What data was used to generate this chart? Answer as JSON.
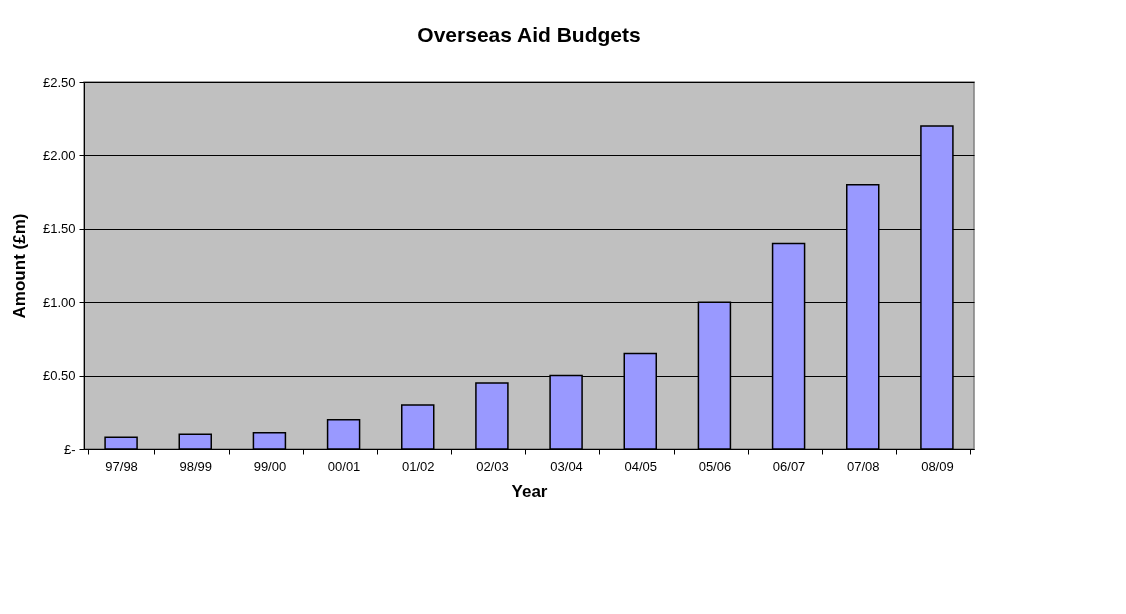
{
  "chart_data": {
    "type": "bar",
    "title": "Overseas Aid Budgets",
    "xlabel": "Year",
    "ylabel": "Amount (£m)",
    "categories": [
      "97/98",
      "98/99",
      "99/00",
      "00/01",
      "01/02",
      "02/03",
      "03/04",
      "04/05",
      "05/06",
      "06/07",
      "07/08",
      "08/09"
    ],
    "values": [
      0.08,
      0.1,
      0.11,
      0.2,
      0.3,
      0.45,
      0.5,
      0.65,
      1.0,
      1.4,
      1.8,
      2.2
    ],
    "color": "#9999ff",
    "ylim": [
      0,
      2.5
    ],
    "yticks": [
      {
        "value": 0,
        "label": "£-"
      },
      {
        "value": 0.5,
        "label": "£0.50"
      },
      {
        "value": 1.0,
        "label": "£1.00"
      },
      {
        "value": 1.5,
        "label": "£1.50"
      },
      {
        "value": 2.0,
        "label": "£2.00"
      },
      {
        "value": 2.5,
        "label": "£2.50"
      }
    ],
    "grid": "y"
  }
}
